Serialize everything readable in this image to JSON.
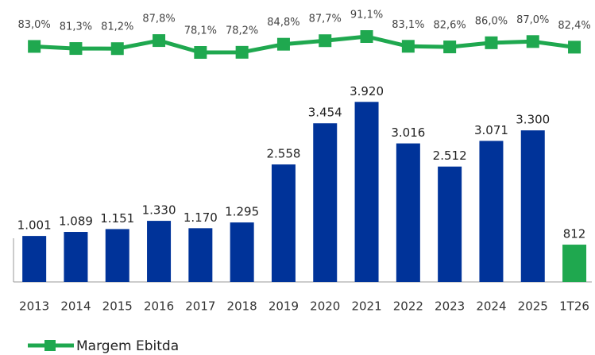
{
  "chart_data": {
    "type": "bar",
    "categories": [
      "2013",
      "2014",
      "2015",
      "2016",
      "2017",
      "2018",
      "2019",
      "2020",
      "2021",
      "2022",
      "2023",
      "2024",
      "2025",
      "1T26"
    ],
    "ylim": [
      0,
      6000
    ],
    "y2lim": [
      56,
      108
    ],
    "series": [
      {
        "type": "bar",
        "colors": [
          "#003399",
          "#003399",
          "#003399",
          "#003399",
          "#003399",
          "#003399",
          "#003399",
          "#003399",
          "#003399",
          "#003399",
          "#003399",
          "#003399",
          "#003399",
          "#1fa84f"
        ],
        "values": [
          1001,
          1089,
          1151,
          1330,
          1170,
          1295,
          2558,
          3454,
          3920,
          3016,
          2512,
          3071,
          3300,
          812
        ],
        "value_labels": [
          "1.001",
          "1.089",
          "1.151",
          "1.330",
          "1.170",
          "1.295",
          "2.558",
          "3.454",
          "3.920",
          "3.016",
          "2.512",
          "3.071",
          "3.300",
          "812"
        ]
      },
      {
        "type": "line",
        "name": "Margem Ebitda",
        "color": "#1fa84f",
        "axis": "y2",
        "values": [
          83.0,
          81.3,
          81.2,
          87.8,
          78.1,
          78.2,
          84.8,
          87.7,
          91.1,
          83.1,
          82.6,
          86.0,
          87.0,
          82.4
        ],
        "value_labels": [
          "83,0%",
          "81,3%",
          "81,2%",
          "87,8%",
          "78,1%",
          "78,2%",
          "84,8%",
          "87,7%",
          "91,1%",
          "83,1%",
          "82,6%",
          "86,0%",
          "87,0%",
          "82,4%"
        ]
      }
    ]
  }
}
